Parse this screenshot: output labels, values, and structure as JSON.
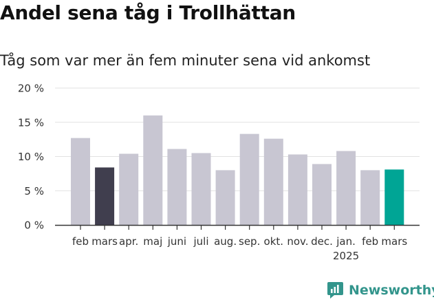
{
  "title": "Andel sena tåg i Trollhättan",
  "subtitle": "Tåg som var mer än fem minuter sena vid ankomst",
  "brand": {
    "name": "Newsworthy",
    "icon": "newsworthy-logo-icon",
    "color": "#33958c"
  },
  "chart_data": {
    "type": "bar",
    "categories": [
      "feb",
      "mars",
      "apr.",
      "maj",
      "juni",
      "juli",
      "aug.",
      "sep.",
      "okt.",
      "nov.",
      "dec.",
      "jan.",
      "feb",
      "mars"
    ],
    "year_labels": [
      "",
      "",
      "",
      "",
      "",
      "",
      "",
      "",
      "",
      "",
      "",
      "2025",
      "",
      ""
    ],
    "values": [
      12.7,
      8.4,
      10.4,
      16.0,
      11.1,
      10.5,
      8.0,
      13.3,
      12.6,
      10.3,
      8.9,
      10.8,
      8.0,
      8.1
    ],
    "ylim": [
      0,
      20
    ],
    "yticks": [
      0,
      5,
      10,
      15,
      20
    ],
    "ytick_labels": [
      "0 %",
      "5 %",
      "10 %",
      "15 %",
      "20 %"
    ],
    "grid": true,
    "colors": {
      "default": "#c8c6d2",
      "highlight_first": "#403e4e",
      "highlight_last": "#00a595",
      "grid": "#e2e2e2",
      "axis": "#333333"
    },
    "highlights": {
      "1": "highlight_first",
      "13": "highlight_last"
    }
  }
}
